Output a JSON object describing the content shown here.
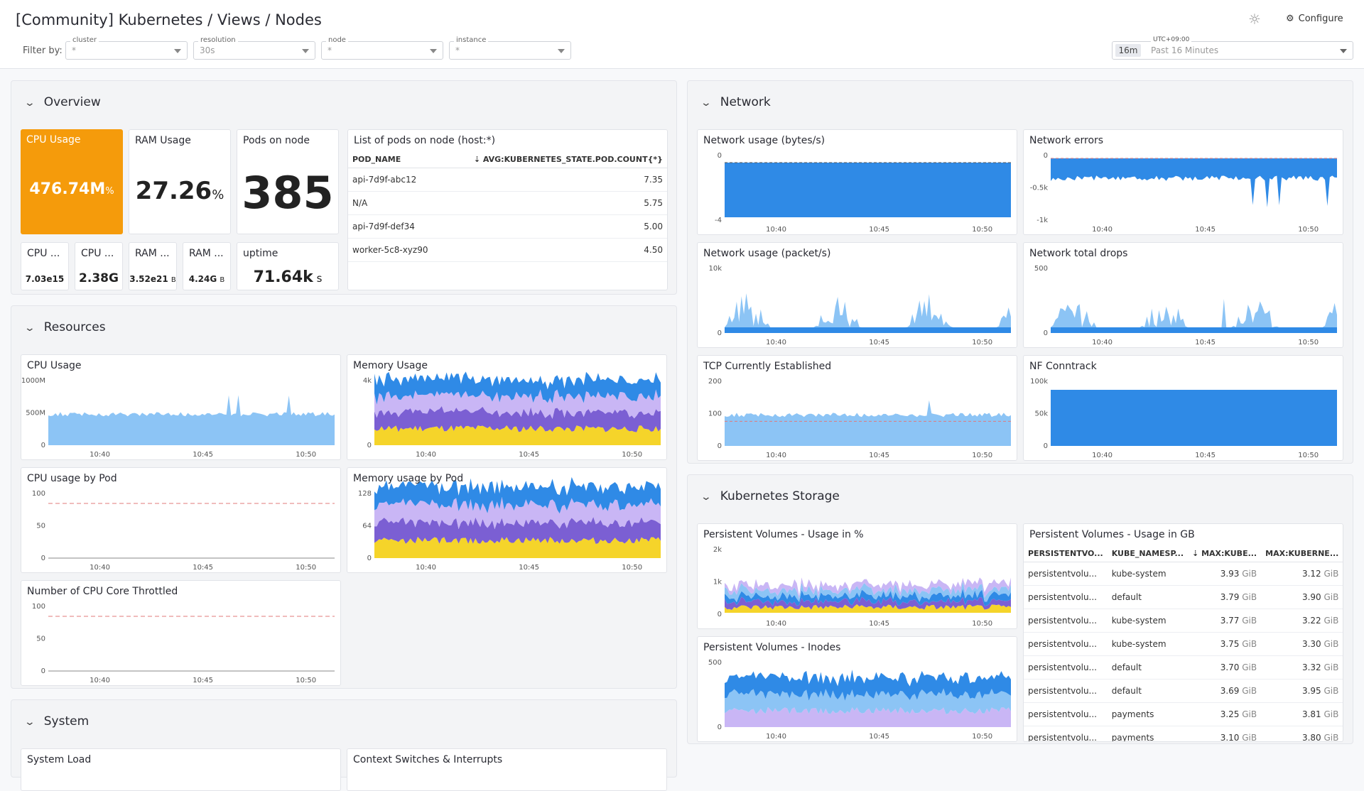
{
  "header": {
    "title": "[Community] Kubernetes / Views / Nodes",
    "filter_label": "Filter by:",
    "configure_label": "Configure",
    "filters": [
      {
        "label": "cluster",
        "value": "*"
      },
      {
        "label": "resolution",
        "value": "30s"
      },
      {
        "label": "node",
        "value": "*"
      },
      {
        "label": "instance",
        "value": "*"
      }
    ],
    "time": {
      "chip": "16m",
      "tz": "UTC+09:00",
      "label": "Past 16 Minutes"
    }
  },
  "x_ticks": [
    "10:40",
    "10:45",
    "10:50"
  ],
  "overview": {
    "heading": "Overview",
    "cpu_usage": {
      "title": "CPU Usage",
      "value": "476.74M",
      "unit": "%",
      "bg": "#f59b0b"
    },
    "ram_usage": {
      "title": "RAM Usage",
      "value": "27.26",
      "unit": "%"
    },
    "pods_on_node": {
      "title": "Pods on node",
      "value": "385"
    },
    "small": [
      {
        "title": "CPU ...",
        "value": "7.03e15",
        "unit": ""
      },
      {
        "title": "CPU ...",
        "value": "2.38G",
        "unit": ""
      },
      {
        "title": "RAM ...",
        "value": "3.52e21",
        "unit": "B"
      },
      {
        "title": "RAM ...",
        "value": "4.24G",
        "unit": "B"
      }
    ],
    "uptime": {
      "title": "uptime",
      "value": "71.64k",
      "unit": "s"
    },
    "pods_list": {
      "title": "List of pods on node (host:*)",
      "col1": "POD_NAME",
      "col2": "AVG:KUBERNETES_STATE.POD.COUNT{*}",
      "rows": [
        {
          "name": "api-7d9f-abc12",
          "value": "7.35"
        },
        {
          "name": "N/A",
          "value": "5.75"
        },
        {
          "name": "api-7d9f-def34",
          "value": "5.00"
        },
        {
          "name": "worker-5c8-xyz90",
          "value": "4.50"
        }
      ]
    }
  },
  "resources": {
    "heading": "Resources",
    "cpu_usage": {
      "title": "CPU Usage",
      "y": [
        "1000M",
        "500M",
        "0"
      ]
    },
    "memory_usage": {
      "title": "Memory Usage",
      "y": [
        "4k",
        "0"
      ]
    },
    "cpu_by_pod": {
      "title": "CPU usage by Pod",
      "y": [
        "100",
        "50",
        "0"
      ]
    },
    "mem_by_pod": {
      "title": "Memory usage by Pod",
      "y": [
        "128",
        "64",
        "0"
      ]
    },
    "throttled": {
      "title": "Number of CPU Core Throttled",
      "y": [
        "100",
        "50",
        "0"
      ]
    }
  },
  "system": {
    "heading": "System",
    "load": {
      "title": "System Load"
    },
    "ctx": {
      "title": "Context Switches & Interrupts"
    }
  },
  "network": {
    "heading": "Network",
    "usage_bytes": {
      "title": "Network usage (bytes/s)",
      "y": [
        "0",
        "-4"
      ]
    },
    "errors": {
      "title": "Network errors",
      "y": [
        "0",
        "-0.5k",
        "-1k"
      ]
    },
    "usage_packets": {
      "title": "Network usage (packet/s)",
      "y": [
        "10k",
        "0"
      ]
    },
    "drops": {
      "title": "Network total drops",
      "y": [
        "500",
        "0"
      ]
    },
    "tcp": {
      "title": "TCP Currently Established",
      "y": [
        "200",
        "100",
        "0"
      ]
    },
    "conntrack": {
      "title": "NF Conntrack",
      "y": [
        "100k",
        "50k",
        "0"
      ]
    }
  },
  "storage": {
    "heading": "Kubernetes Storage",
    "pv_pct": {
      "title": "Persistent Volumes - Usage in %",
      "y": [
        "2k",
        "1k",
        "0"
      ]
    },
    "pv_inodes": {
      "title": "Persistent Volumes - Inodes",
      "y": [
        "500",
        "0"
      ]
    },
    "pv_gb": {
      "title": "Persistent Volumes - Usage in GB",
      "cols": [
        "PERSISTENTVO...",
        "KUBE_NAMESP...",
        "MAX:KUBE...",
        "MAX:KUBERNE..."
      ],
      "rows": [
        {
          "pv": "persistentvolu...",
          "ns": "kube-system",
          "a": "3.93",
          "b": "3.12"
        },
        {
          "pv": "persistentvolu...",
          "ns": "default",
          "a": "3.79",
          "b": "3.90"
        },
        {
          "pv": "persistentvolu...",
          "ns": "kube-system",
          "a": "3.77",
          "b": "3.22"
        },
        {
          "pv": "persistentvolu...",
          "ns": "kube-system",
          "a": "3.75",
          "b": "3.30"
        },
        {
          "pv": "persistentvolu...",
          "ns": "default",
          "a": "3.70",
          "b": "3.32"
        },
        {
          "pv": "persistentvolu...",
          "ns": "default",
          "a": "3.69",
          "b": "3.95"
        },
        {
          "pv": "persistentvolu...",
          "ns": "payments",
          "a": "3.25",
          "b": "3.81"
        },
        {
          "pv": "persistentvolu...",
          "ns": "payments",
          "a": "3.10",
          "b": "3.80"
        }
      ],
      "unit": "GiB"
    }
  },
  "colors": {
    "blue": "#2f8ae6",
    "lightblue": "#8cc4f5",
    "purple": "#7b5fd3",
    "lavender": "#c9b6f5",
    "yellow": "#f5d42a",
    "red_dash": "#e07a7a"
  }
}
